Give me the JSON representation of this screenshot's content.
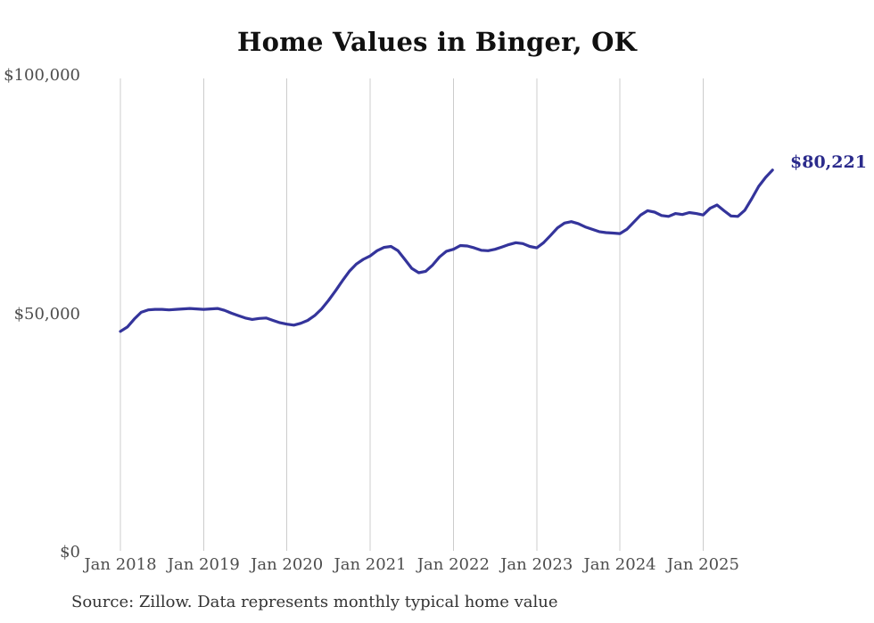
{
  "page": {
    "background": "#ffffff"
  },
  "chart_data": {
    "type": "line",
    "title": "Home Values in Binger, OK",
    "xlabel": "",
    "ylabel": "",
    "ylim": [
      0,
      100000
    ],
    "grid": "vertical-only",
    "legend": "none",
    "x_tick_labels": [
      "Jan 2018",
      "Jan 2019",
      "Jan 2020",
      "Jan 2021",
      "Jan 2022",
      "Jan 2023",
      "Jan 2024",
      "Jan 2025"
    ],
    "y_ticks": [
      {
        "label": "$0",
        "value": 0
      },
      {
        "label": "$50,000",
        "value": 50000
      },
      {
        "label": "$100,000",
        "value": 100000
      }
    ],
    "series": [
      {
        "name": "Typical home value",
        "start": "Jan 2018",
        "end": "Nov 2025",
        "frequency": "monthly",
        "values": [
          46400,
          47300,
          49000,
          50400,
          50900,
          51000,
          51000,
          50900,
          51000,
          51100,
          51200,
          51100,
          51000,
          51100,
          51200,
          50800,
          50200,
          49700,
          49200,
          48900,
          49100,
          49200,
          48700,
          48200,
          47900,
          47700,
          48100,
          48700,
          49700,
          51100,
          52900,
          54900,
          57000,
          59000,
          60500,
          61500,
          62200,
          63300,
          64000,
          64200,
          63300,
          61500,
          59600,
          58700,
          59000,
          60300,
          62000,
          63200,
          63600,
          64400,
          64300,
          63900,
          63400,
          63300,
          63600,
          64100,
          64600,
          65000,
          64800,
          64200,
          63900,
          65000,
          66500,
          68100,
          69100,
          69400,
          69000,
          68300,
          67800,
          67300,
          67100,
          67000,
          66900,
          67800,
          69300,
          70800,
          71700,
          71400,
          70700,
          70500,
          71100,
          70900,
          71300,
          71100,
          70800,
          72200,
          72900,
          71700,
          70600,
          70500,
          71800,
          74200,
          76800,
          78700,
          80221
        ]
      }
    ],
    "end_label": "$80,221",
    "end_value": 80221,
    "source_note": "Source: Zillow. Data represents monthly typical home value",
    "colors": {
      "line": "#34349b",
      "end_label": "#2b2b8c",
      "gridline": "#cccccc",
      "title": "#111111",
      "axis_label": "#4d4d4d",
      "source": "#333333"
    }
  }
}
